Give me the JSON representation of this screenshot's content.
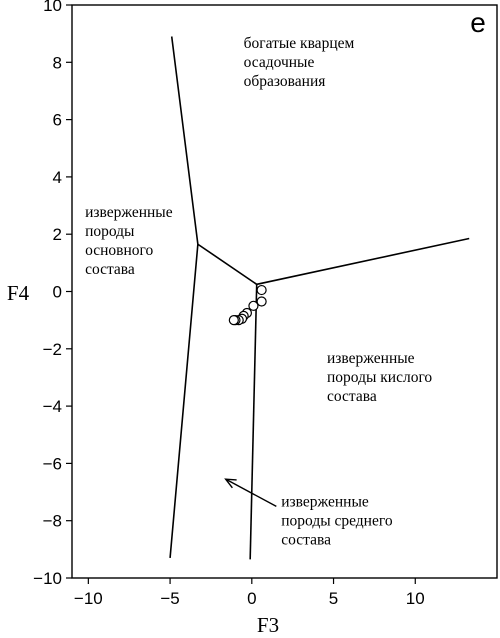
{
  "chart_data": {
    "type": "scatter",
    "title": "",
    "panel_letter": "e",
    "xlabel": "F3",
    "ylabel": "F4",
    "xlim": [
      -11,
      15
    ],
    "ylim": [
      -10,
      10
    ],
    "x_ticks": [
      -10,
      -5,
      0,
      5,
      10
    ],
    "y_ticks": [
      -10,
      -8,
      -6,
      -4,
      -2,
      0,
      2,
      4,
      6,
      8,
      10
    ],
    "tick_labels_x": [
      "−10",
      "−5",
      "0",
      "5",
      "10"
    ],
    "tick_labels_y": [
      "−10",
      "−8",
      "−6",
      "−4",
      "−2",
      "0",
      "2",
      "4",
      "6",
      "8",
      "10"
    ],
    "grid": false,
    "boundary_lines": [
      {
        "x": [
          -4.9,
          -3.3,
          -5.0
        ],
        "y": [
          8.9,
          1.65,
          -9.3
        ]
      },
      {
        "x": [
          -3.3,
          0.3,
          13.3
        ],
        "y": [
          1.65,
          0.25,
          1.85
        ]
      },
      {
        "x": [
          0.3,
          -0.1
        ],
        "y": [
          0.25,
          -9.35
        ]
      }
    ],
    "points": {
      "x": [
        0.6,
        0.6,
        0.1,
        -0.3,
        -0.5,
        -0.6,
        -0.8,
        -1.0,
        -1.1
      ],
      "y": [
        0.05,
        -0.35,
        -0.5,
        -0.75,
        -0.85,
        -0.95,
        -1.0,
        -1.0,
        -1.0
      ]
    },
    "region_labels": [
      {
        "lines": [
          "богатые кварцем",
          "осадочные",
          "образования"
        ],
        "x": -0.5,
        "y": 8.5
      },
      {
        "lines": [
          "изверженные",
          "породы",
          "основного",
          "состава"
        ],
        "x": -10.2,
        "y": 2.6
      },
      {
        "lines": [
          "изверженные",
          "породы кислого",
          "состава"
        ],
        "x": 4.6,
        "y": -2.5
      },
      {
        "lines": [
          "изверженные",
          "породы среднего",
          "состава"
        ],
        "x": 1.8,
        "y": -7.5
      }
    ],
    "annotation_arrow": {
      "from": [
        1.5,
        -7.5
      ],
      "to": [
        -1.6,
        -6.55
      ]
    }
  }
}
